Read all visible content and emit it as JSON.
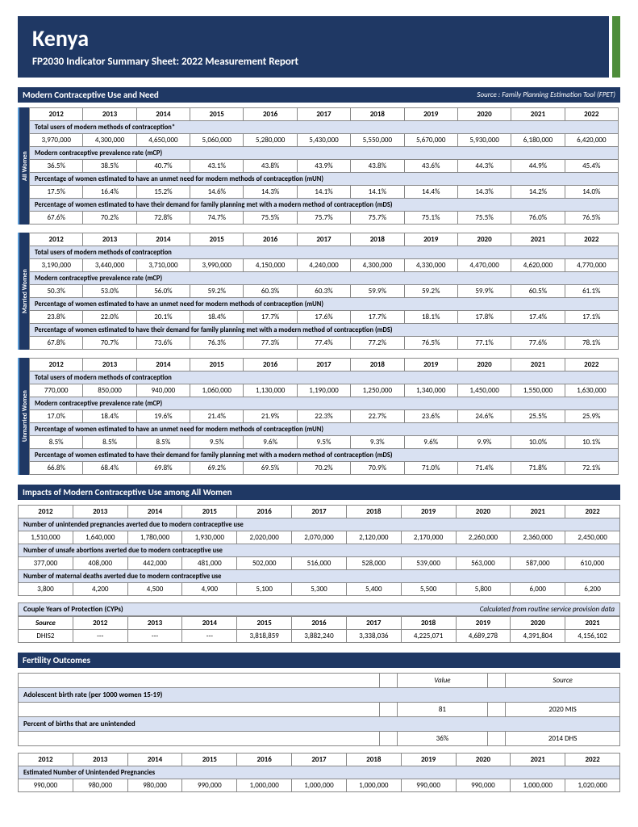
{
  "header": {
    "country": "Kenya",
    "subtitle": "FP2030 Indicator Summary Sheet:  2022 Measurement Report"
  },
  "years": [
    "2012",
    "2013",
    "2014",
    "2015",
    "2016",
    "2017",
    "2018",
    "2019",
    "2020",
    "2021",
    "2022"
  ],
  "section1": {
    "title": "Modern Contraceptive Use and Need",
    "source": "Source : Family Planning Estimation Tool (FPET)",
    "groups": [
      {
        "label": "All Women",
        "sideClass": "teal-side",
        "rows": [
          {
            "label": "Total users of modern methods of contraception*",
            "values": [
              "3,970,000",
              "4,300,000",
              "4,650,000",
              "5,060,000",
              "5,280,000",
              "5,430,000",
              "5,550,000",
              "5,670,000",
              "5,930,000",
              "6,180,000",
              "6,420,000"
            ]
          },
          {
            "label": "Modern contraceptive prevalence rate (mCP)",
            "values": [
              "36.5%",
              "38.5%",
              "40.7%",
              "43.1%",
              "43.8%",
              "43.9%",
              "43.8%",
              "43.6%",
              "44.3%",
              "44.9%",
              "45.4%"
            ]
          },
          {
            "label": "Percentage of women estimated to have an unmet need  for modern methods of contraception (mUN)",
            "values": [
              "17.5%",
              "16.4%",
              "15.2%",
              "14.6%",
              "14.3%",
              "14.1%",
              "14.1%",
              "14.4%",
              "14.3%",
              "14.2%",
              "14.0%"
            ]
          },
          {
            "label": "Percentage of women estimated to have their demand for family planning met with a modern method of contraception (mDS)",
            "values": [
              "67.6%",
              "70.2%",
              "72.8%",
              "74.7%",
              "75.5%",
              "75.7%",
              "75.7%",
              "75.1%",
              "75.5%",
              "76.0%",
              "76.5%"
            ]
          }
        ]
      },
      {
        "label": "Married Women",
        "sideClass": "teal-side",
        "rows": [
          {
            "label": "Total users of modern methods of contraception",
            "values": [
              "3,190,000",
              "3,440,000",
              "3,710,000",
              "3,990,000",
              "4,150,000",
              "4,240,000",
              "4,300,000",
              "4,330,000",
              "4,470,000",
              "4,620,000",
              "4,770,000"
            ]
          },
          {
            "label": "Modern contraceptive prevalence rate (mCP)",
            "values": [
              "50.3%",
              "53.0%",
              "56.0%",
              "59.2%",
              "60.3%",
              "60.3%",
              "59.9%",
              "59.2%",
              "59.9%",
              "60.5%",
              "61.1%"
            ]
          },
          {
            "label": "Percentage of women estimated to have an unmet need  for modern methods of contraception (mUN)",
            "values": [
              "23.8%",
              "22.0%",
              "20.1%",
              "18.4%",
              "17.7%",
              "17.6%",
              "17.7%",
              "18.1%",
              "17.8%",
              "17.4%",
              "17.1%"
            ]
          },
          {
            "label": "Percentage of women estimated to have their demand for family planning met with a modern method of contraception (mDS)",
            "values": [
              "67.8%",
              "70.7%",
              "73.6%",
              "76.3%",
              "77.3%",
              "77.4%",
              "77.2%",
              "76.5%",
              "77.1%",
              "77.6%",
              "78.1%"
            ]
          }
        ]
      },
      {
        "label": "Unmarried Women",
        "sideClass": "teal-side",
        "rows": [
          {
            "label": "Total users of modern methods of contraception",
            "values": [
              "770,000",
              "850,000",
              "940,000",
              "1,060,000",
              "1,130,000",
              "1,190,000",
              "1,250,000",
              "1,340,000",
              "1,450,000",
              "1,550,000",
              "1,630,000"
            ]
          },
          {
            "label": "Modern contraceptive prevalence rate (mCP)",
            "values": [
              "17.0%",
              "18.4%",
              "19.6%",
              "21.4%",
              "21.9%",
              "22.3%",
              "22.7%",
              "23.6%",
              "24.6%",
              "25.5%",
              "25.9%"
            ]
          },
          {
            "label": "Percentage of women estimated to have an unmet need  for modern methods of contraception (mUN)",
            "values": [
              "8.5%",
              "8.5%",
              "8.5%",
              "9.5%",
              "9.6%",
              "9.5%",
              "9.3%",
              "9.6%",
              "9.9%",
              "10.0%",
              "10.1%"
            ]
          },
          {
            "label": "Percentage of women estimated to have their demand for family planning met with a modern method of contraception (mDS)",
            "values": [
              "66.8%",
              "68.4%",
              "69.8%",
              "69.2%",
              "69.5%",
              "70.2%",
              "70.9%",
              "71.0%",
              "71.4%",
              "71.8%",
              "72.1%"
            ]
          }
        ]
      }
    ]
  },
  "section2": {
    "title": "Impacts of Modern Contraceptive Use among All Women",
    "rows": [
      {
        "label": "Number of unintended pregnancies averted due to modern contraceptive use",
        "values": [
          "1,510,000",
          "1,640,000",
          "1,780,000",
          "1,930,000",
          "2,020,000",
          "2,070,000",
          "2,120,000",
          "2,170,000",
          "2,260,000",
          "2,360,000",
          "2,450,000"
        ]
      },
      {
        "label": "Number of unsafe abortions averted due to modern contraceptive use",
        "values": [
          "377,000",
          "408,000",
          "442,000",
          "481,000",
          "502,000",
          "516,000",
          "528,000",
          "539,000",
          "563,000",
          "587,000",
          "610,000"
        ]
      },
      {
        "label": "Number of maternal deaths averted due to modern contraceptive use",
        "values": [
          "3,800",
          "4,200",
          "4,500",
          "4,900",
          "5,100",
          "5,300",
          "5,400",
          "5,500",
          "5,800",
          "6,000",
          "6,200"
        ]
      }
    ]
  },
  "cyp": {
    "title": "Couple Years of Protection (CYPs)",
    "note": "Calculated from routine service provision data",
    "source_label": "Source",
    "years": [
      "2012",
      "2013",
      "2014",
      "2015",
      "2016",
      "2017",
      "2018",
      "2019",
      "2020",
      "2021"
    ],
    "source_name": "DHIS2",
    "values": [
      "---",
      "---",
      "---",
      "3,818,859",
      "3,882,240",
      "3,338,036",
      "4,225,071",
      "4,689,278",
      "4,391,804",
      "4,156,102"
    ]
  },
  "section3": {
    "title": "Fertility Outcomes",
    "value_label": "Value",
    "source_label": "Source",
    "rows": [
      {
        "label": "Adolescent birth rate (per 1000 women 15-19)",
        "value": "81",
        "source": "2020 MIS"
      },
      {
        "label": "Percent of births that are unintended",
        "value": "36%",
        "source": "2014 DHS"
      }
    ],
    "est_label": "Estimated Number of Unintended Pregnancies",
    "est_values": [
      "990,000",
      "980,000",
      "980,000",
      "990,000",
      "1,000,000",
      "1,000,000",
      "1,000,000",
      "990,000",
      "990,000",
      "1,000,000",
      "1,020,000"
    ]
  },
  "colors": {
    "header_bg": "#1f3864",
    "label_bg": "#d9e1f2",
    "accent": "#4e8d3a"
  }
}
